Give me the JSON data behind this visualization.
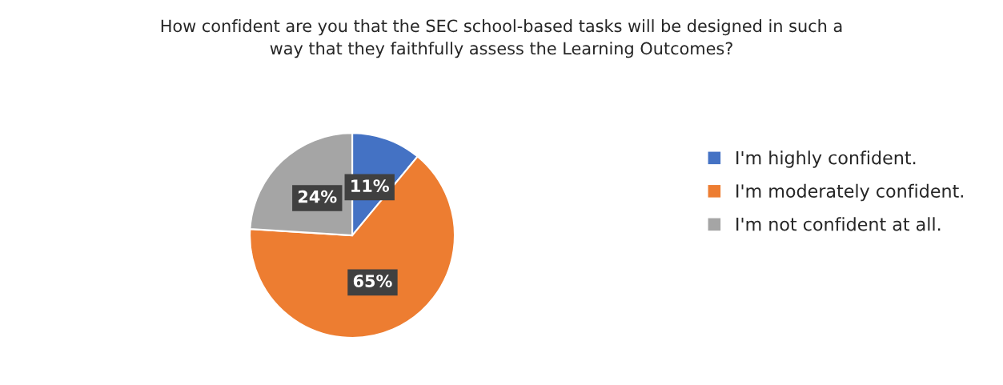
{
  "chart_data": {
    "type": "pie",
    "title": "How confident are you that the SEC school-based tasks will be designed in such a\nway that they faithfully assess the Learning Outcomes?",
    "categories": [
      "I'm highly confident.",
      "I'm moderately confident.",
      "I'm not confident at all."
    ],
    "values": [
      11,
      65,
      24
    ],
    "colors": [
      "#4472c4",
      "#ed7d31",
      "#a5a5a5"
    ],
    "value_labels": [
      "11%",
      "65%",
      "24%"
    ],
    "legend": "right"
  }
}
